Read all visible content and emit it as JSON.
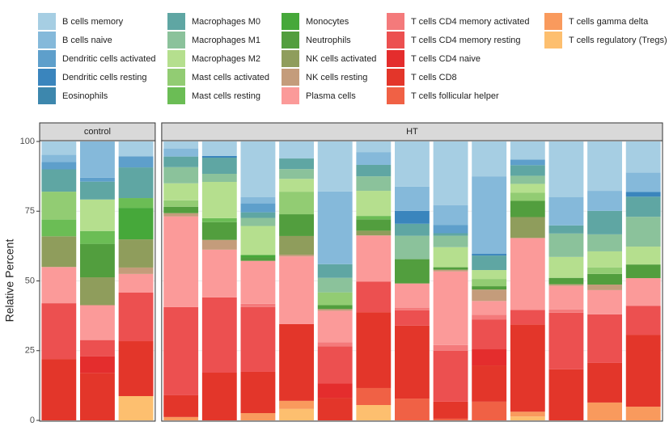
{
  "chart_data": {
    "type": "stacked_bar",
    "y_label": "Relative Percent",
    "panels": [
      {
        "label": "control",
        "categories": [
          null,
          null,
          null
        ]
      },
      {
        "label": "HT",
        "categories": [
          null,
          null,
          null,
          null,
          null,
          null,
          null,
          null,
          null,
          null,
          null,
          null,
          null
        ]
      }
    ],
    "ylim": [
      0,
      100
    ],
    "yticks": [
      0,
      25,
      50,
      75,
      100
    ],
    "grid": true,
    "series": [
      {
        "name": "B cells memory",
        "color": "#a6cee3",
        "values": [
          4.8,
          0,
          5.3,
          2.5,
          5.2,
          19.9,
          6.1,
          17.9,
          3.8,
          16.2,
          22.8,
          12.5,
          6.5,
          20,
          17.7,
          11.1
        ]
      },
      {
        "name": "B cells naive",
        "color": "#85b9da",
        "values": [
          2.6,
          13,
          0,
          2.9,
          0,
          2.3,
          0,
          26.1,
          4.6,
          8.7,
          7.2,
          27.8,
          0,
          10.1,
          7.2,
          7
        ]
      },
      {
        "name": "Dendritic cells activated",
        "color": "#5e9fcb",
        "values": [
          2.6,
          1.4,
          4,
          0,
          0,
          3.2,
          0,
          0,
          0,
          0,
          2.9,
          0,
          2,
          0,
          0,
          0
        ]
      },
      {
        "name": "Dendritic cells resting",
        "color": "#3a85bd",
        "values": [
          0,
          0,
          0,
          0,
          0.6,
          0,
          0,
          0,
          0,
          4.6,
          0,
          0.6,
          0,
          0,
          0,
          1.7
        ]
      },
      {
        "name": "Eosinophils",
        "color": "#3d87ad",
        "values": [
          0,
          0,
          0,
          0,
          0,
          0,
          0,
          0,
          0,
          0,
          0,
          0,
          0,
          0,
          0,
          0
        ]
      },
      {
        "name": "Macrophages M0",
        "color": "#5fa6a3",
        "values": [
          8,
          6.4,
          11,
          3.8,
          5.8,
          2,
          3.8,
          4.9,
          4.1,
          4.3,
          0.9,
          5.2,
          3.8,
          2.9,
          8.4,
          7.2
        ]
      },
      {
        "name": "Macrophages M1",
        "color": "#8bc29b",
        "values": [
          0,
          0,
          0,
          5.8,
          2.9,
          2.9,
          3.5,
          5.2,
          5.2,
          8.4,
          4.1,
          0,
          2.9,
          8.4,
          6.1,
          10.7
        ]
      },
      {
        "name": "Macrophages M2",
        "color": "#b5df8e",
        "values": [
          0,
          11.3,
          0,
          6.1,
          13,
          10.4,
          4.6,
          0,
          9,
          0,
          7.2,
          3.2,
          3.2,
          7.5,
          5.8,
          6.4
        ]
      },
      {
        "name": "Mast cells activated",
        "color": "#92cc73",
        "values": [
          10,
          0,
          0,
          2.3,
          0,
          0,
          8.1,
          4.6,
          0,
          0,
          0,
          2.6,
          2.9,
          0,
          2.3,
          0
        ]
      },
      {
        "name": "Mast cells resting",
        "color": "#6bbd55",
        "values": [
          6,
          4.6,
          3.5,
          0,
          1.4,
          0,
          0,
          0,
          1.2,
          0,
          0,
          0,
          0,
          0,
          0,
          0
        ]
      },
      {
        "name": "Monocytes",
        "color": "#46a83a",
        "values": [
          0,
          0,
          11.3,
          0,
          0,
          0.9,
          0,
          0,
          0,
          0,
          0,
          0,
          0,
          0,
          0,
          0
        ]
      },
      {
        "name": "Neutrophils",
        "color": "#529e3e",
        "values": [
          0,
          12,
          0,
          2.3,
          6.4,
          1.2,
          7.8,
          1.4,
          4.1,
          8.7,
          0.9,
          1.2,
          5.8,
          2.3,
          3.8,
          4.9
        ]
      },
      {
        "name": "NK cells activated",
        "color": "#8f9d5c",
        "values": [
          11,
          10,
          10.1,
          0,
          0,
          0,
          6.7,
          0,
          1.7,
          0,
          0,
          0,
          7.5,
          0,
          0,
          0
        ]
      },
      {
        "name": "NK cells resting",
        "color": "#c49c7b",
        "values": [
          0,
          0,
          2.3,
          1.2,
          3.5,
          0,
          0.6,
          0.6,
          0,
          0,
          0.6,
          4.1,
          0,
          0.6,
          2,
          0
        ]
      },
      {
        "name": "Plasma cells",
        "color": "#fb9a99",
        "values": [
          13,
          12.5,
          6.7,
          32.5,
          17.1,
          15.4,
          24.3,
          11.3,
          16.5,
          8.7,
          26.4,
          4.9,
          25.8,
          8.4,
          8.7,
          9.9
        ]
      },
      {
        "name": "T cells CD4 memory activated",
        "color": "#f47a7b",
        "values": [
          0,
          0,
          0,
          0,
          0,
          1.2,
          0,
          1.4,
          0,
          0.9,
          2,
          1.7,
          0,
          1.2,
          0,
          0
        ]
      },
      {
        "name": "T cells CD4 memory resting",
        "color": "#ec5050",
        "values": [
          20,
          5.8,
          17.4,
          31.6,
          27,
          23.2,
          0,
          13.3,
          11,
          5.5,
          18.3,
          10.7,
          5.2,
          20.3,
          17.4,
          10.4
        ]
      },
      {
        "name": "T cells CD4 naive",
        "color": "#e42d2d",
        "values": [
          0,
          6,
          0,
          0,
          0,
          0,
          0,
          5.2,
          0,
          0,
          0,
          5.8,
          0,
          0,
          0,
          0
        ]
      },
      {
        "name": "T cells CD8",
        "color": "#e3362a",
        "values": [
          22,
          17,
          19.7,
          7.8,
          17.1,
          14.8,
          27.5,
          8.1,
          27.2,
          26.2,
          6.1,
          13,
          31.3,
          18.3,
          14.2,
          25.8
        ]
      },
      {
        "name": "T cells follicular helper",
        "color": "#f06145",
        "values": [
          0,
          0,
          0,
          0,
          0,
          0,
          0,
          0,
          6.1,
          7.8,
          0.6,
          6.7,
          0,
          0,
          0,
          0
        ]
      },
      {
        "name": "T cells gamma delta",
        "color": "#f99a5d",
        "values": [
          0,
          0,
          0,
          1.2,
          0,
          2.6,
          2.9,
          0,
          0,
          0,
          0,
          0,
          1.7,
          0,
          6.4,
          4.9
        ]
      },
      {
        "name": "T cells regulatory (Tregs)",
        "color": "#fdbf6f",
        "values": [
          0,
          0,
          8.7,
          0,
          0,
          0,
          4.1,
          0,
          5.5,
          0,
          0,
          0,
          1.4,
          0,
          0,
          0
        ]
      }
    ]
  }
}
